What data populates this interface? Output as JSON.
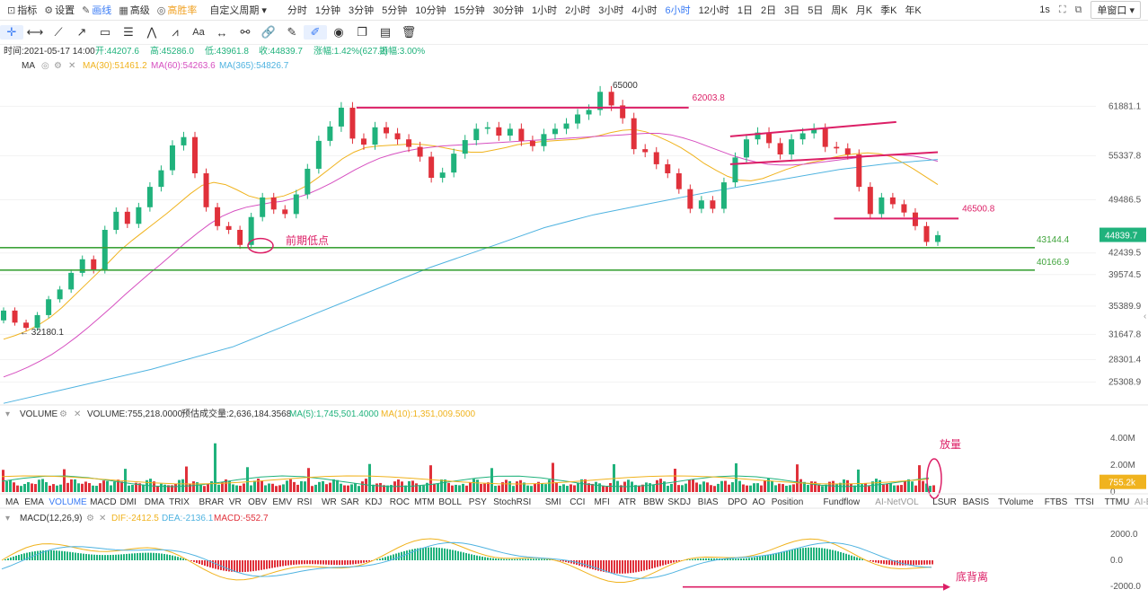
{
  "toolbar": {
    "items": [
      {
        "label": "指标",
        "icon": "indicator-icon"
      },
      {
        "label": "设置",
        "icon": "gear-icon"
      },
      {
        "label": "画线",
        "icon": "pen-icon"
      },
      {
        "label": "高级",
        "icon": "grid-icon"
      },
      {
        "label": "高胜率",
        "icon": "target-icon"
      }
    ],
    "custom_period": "自定义周期 ▾",
    "periods": [
      "分时",
      "1分钟",
      "3分钟",
      "5分钟",
      "10分钟",
      "15分钟",
      "30分钟",
      "1小时",
      "2小时",
      "3小时",
      "4小时",
      "6小时",
      "12小时",
      "1日",
      "2日",
      "3日",
      "5日",
      "周K",
      "月K",
      "季K",
      "年K"
    ],
    "active_period": "6小时",
    "right_interval": "1s",
    "window_label": "单窗口 ▾"
  },
  "colors": {
    "up": "#20b27c",
    "down": "#e0313b",
    "ma30": "#f0b31e",
    "ma60": "#d64fc0",
    "ma365": "#4fb3e0",
    "trend": "#dc1f66",
    "support": "#3ea33a",
    "dif": "#f0b31e",
    "dea": "#4fb3e0"
  },
  "info": {
    "time": "时间:2021-05-17 14:00",
    "open": "开:44207.6",
    "high": "高:45286.0",
    "low": "低:43961.8",
    "close": "收:44839.7",
    "change": "涨幅:1.42%(627.2)",
    "amplitude": "振幅:3.00%",
    "ma_label": "MA",
    "ma30": "MA(30):51461.2",
    "ma60": "MA(60):54263.6",
    "ma365": "MA(365):54826.7",
    "vol_label": "VOLUME",
    "volume": "VOLUME:755,218.0000",
    "est": "预估成交量:2,636,184.3568",
    "vma5": "MA(5):1,745,501.4000",
    "vma10": "MA(10):1,351,009.5000",
    "macd_label": "MACD(12,26,9)",
    "dif": "DIF:-2412.5",
    "dea": "DEA:-2136.1",
    "macd": "MACD:-552.7"
  },
  "indicator_tabs": [
    "MA",
    "EMA",
    "VOLUME",
    "MACD",
    "DMI",
    "DMA",
    "TRIX",
    "BRAR",
    "VR",
    "OBV",
    "EMV",
    "RSI",
    "WR",
    "SAR",
    "KDJ",
    "ROC",
    "MTM",
    "BOLL",
    "PSY",
    "StochRSI",
    "SMI",
    "CCI",
    "MFI",
    "ATR",
    "BBW",
    "SKDJ",
    "BIAS",
    "DPO",
    "AO",
    "Position",
    "Fundflow",
    "AI-NetVOL",
    "LSUR",
    "BASIS",
    "TVolume",
    "FTBS",
    "TTSI",
    "TTMU",
    "AI-BSI"
  ],
  "active_tab": "VOLUME",
  "chart_data": [
    {
      "type": "candlestick",
      "title": "",
      "y_ticks": [
        61881.1,
        55337.8,
        49486.5,
        42439.5,
        39574.5,
        35389.9,
        31647.8,
        28301.4,
        25308.9
      ],
      "ylim": [
        23000,
        65500
      ],
      "current_price_label": "44839.7",
      "candles_sampled": [
        {
          "o": 33500,
          "c": 34800
        },
        {
          "o": 34800,
          "c": 33200
        },
        {
          "o": 33200,
          "c": 32500
        },
        {
          "o": 32500,
          "c": 34200
        },
        {
          "o": 34200,
          "c": 36300
        },
        {
          "o": 36300,
          "c": 37600
        },
        {
          "o": 37600,
          "c": 39800
        },
        {
          "o": 39800,
          "c": 41600
        },
        {
          "o": 41600,
          "c": 40200
        },
        {
          "o": 40200,
          "c": 45500
        },
        {
          "o": 45500,
          "c": 47900
        },
        {
          "o": 47900,
          "c": 46300
        },
        {
          "o": 46300,
          "c": 48500
        },
        {
          "o": 48500,
          "c": 51200
        },
        {
          "o": 51200,
          "c": 53400
        },
        {
          "o": 53400,
          "c": 56700
        },
        {
          "o": 56700,
          "c": 57800
        },
        {
          "o": 57800,
          "c": 53000
        },
        {
          "o": 53000,
          "c": 48500
        },
        {
          "o": 48500,
          "c": 46000
        },
        {
          "o": 46000,
          "c": 45500
        },
        {
          "o": 45500,
          "c": 43500
        },
        {
          "o": 43500,
          "c": 47200
        },
        {
          "o": 47200,
          "c": 49800
        },
        {
          "o": 49800,
          "c": 48200
        },
        {
          "o": 48200,
          "c": 47600
        },
        {
          "o": 47600,
          "c": 50200
        },
        {
          "o": 50200,
          "c": 53600
        },
        {
          "o": 53600,
          "c": 57300
        },
        {
          "o": 57300,
          "c": 59200
        },
        {
          "o": 59200,
          "c": 61700
        },
        {
          "o": 61700,
          "c": 57600
        },
        {
          "o": 57600,
          "c": 56800
        },
        {
          "o": 56800,
          "c": 59100
        },
        {
          "o": 59100,
          "c": 58300
        },
        {
          "o": 58300,
          "c": 57500
        },
        {
          "o": 57500,
          "c": 56500
        },
        {
          "o": 56500,
          "c": 55200
        },
        {
          "o": 55200,
          "c": 52400
        },
        {
          "o": 52400,
          "c": 53100
        },
        {
          "o": 53100,
          "c": 55600
        },
        {
          "o": 55600,
          "c": 57400
        },
        {
          "o": 57400,
          "c": 58900
        },
        {
          "o": 58900,
          "c": 59100
        },
        {
          "o": 59100,
          "c": 58000
        },
        {
          "o": 58000,
          "c": 58900
        },
        {
          "o": 58900,
          "c": 57300
        },
        {
          "o": 57300,
          "c": 56600
        },
        {
          "o": 56600,
          "c": 58200
        },
        {
          "o": 58200,
          "c": 58900
        },
        {
          "o": 58900,
          "c": 59600
        },
        {
          "o": 59600,
          "c": 60800
        },
        {
          "o": 60800,
          "c": 61400
        },
        {
          "o": 61400,
          "c": 63800
        },
        {
          "o": 63800,
          "c": 62000
        },
        {
          "o": 62000,
          "c": 60300
        },
        {
          "o": 60300,
          "c": 56200
        },
        {
          "o": 56200,
          "c": 55800
        },
        {
          "o": 55800,
          "c": 54200
        },
        {
          "o": 54200,
          "c": 53000
        },
        {
          "o": 53000,
          "c": 50900
        },
        {
          "o": 50900,
          "c": 48300
        },
        {
          "o": 48300,
          "c": 49400
        },
        {
          "o": 49400,
          "c": 48300
        },
        {
          "o": 48300,
          "c": 51800
        },
        {
          "o": 51800,
          "c": 55100
        },
        {
          "o": 55100,
          "c": 57500
        },
        {
          "o": 57500,
          "c": 58400
        },
        {
          "o": 58400,
          "c": 57000
        },
        {
          "o": 57000,
          "c": 55500
        },
        {
          "o": 55500,
          "c": 57500
        },
        {
          "o": 57500,
          "c": 58300
        },
        {
          "o": 58300,
          "c": 58900
        },
        {
          "o": 58900,
          "c": 56500
        },
        {
          "o": 56500,
          "c": 56300
        },
        {
          "o": 56300,
          "c": 55500
        },
        {
          "o": 55500,
          "c": 51200
        },
        {
          "o": 51200,
          "c": 47600
        },
        {
          "o": 47600,
          "c": 49800
        },
        {
          "o": 49800,
          "c": 48900
        },
        {
          "o": 48900,
          "c": 47800
        },
        {
          "o": 47800,
          "c": 46000
        },
        {
          "o": 46000,
          "c": 43900
        },
        {
          "o": 43900,
          "c": 44800
        }
      ],
      "ma30": [
        31000,
        31500,
        32100,
        32900,
        33900,
        35200,
        36700,
        38200,
        39700,
        41200,
        42800,
        44100,
        45300,
        46500,
        47700,
        49000,
        50300,
        51400,
        51800,
        51500,
        50800,
        50000,
        49600,
        49700,
        50000,
        50600,
        51400,
        52500,
        53700,
        54900,
        55800,
        56400,
        56600,
        56700,
        56800,
        56900,
        56800,
        56600,
        56300,
        56000,
        55800,
        55800,
        56100,
        56400,
        56800,
        57000,
        57200,
        57300,
        57400,
        57500,
        57700,
        58000,
        58400,
        58700,
        58800,
        58500,
        57900,
        57200,
        56400,
        55400,
        54300,
        53400,
        52600,
        52100,
        52000,
        52300,
        52900,
        53500,
        54000,
        54400,
        54700,
        55100,
        55400,
        55600,
        55700,
        55600,
        55200,
        54400,
        53500,
        52500,
        51500
      ],
      "ma60": [
        26000,
        26600,
        27300,
        28100,
        29000,
        30100,
        31300,
        32600,
        34000,
        35400,
        36900,
        38300,
        39700,
        41000,
        42400,
        43800,
        45100,
        46300,
        47300,
        48000,
        48500,
        48800,
        49100,
        49300,
        49700,
        50200,
        50900,
        51700,
        52600,
        53500,
        54300,
        55000,
        55500,
        55900,
        56200,
        56400,
        56600,
        56700,
        56800,
        56900,
        57000,
        57100,
        57200,
        57300,
        57400,
        57500,
        57600,
        57700,
        57800,
        57900,
        58000,
        58100,
        58200,
        58300,
        58300,
        58100,
        57700,
        57200,
        56600,
        56000,
        55400,
        54900,
        54500,
        54200,
        54100,
        54100,
        54200,
        54400,
        54600,
        54800,
        55000,
        55200,
        55300,
        55400,
        55400,
        55300,
        55000,
        54600
      ],
      "ma365": [
        {
          "i": 0,
          "v": 22500
        },
        {
          "i": 8,
          "v": 24500
        },
        {
          "i": 18,
          "v": 27000
        },
        {
          "i": 28,
          "v": 30000
        },
        {
          "i": 36,
          "v": 33500
        },
        {
          "i": 44,
          "v": 37000
        },
        {
          "i": 52,
          "v": 40500
        },
        {
          "i": 60,
          "v": 43500
        },
        {
          "i": 66,
          "v": 45800
        },
        {
          "i": 72,
          "v": 47500
        },
        {
          "i": 78,
          "v": 48800
        },
        {
          "i": 86,
          "v": 50500
        },
        {
          "i": 94,
          "v": 52000
        },
        {
          "i": 102,
          "v": 53500
        },
        {
          "i": 108,
          "v": 54300
        },
        {
          "i": 114,
          "v": 54830
        }
      ],
      "trend_lines": [
        {
          "a": [
            17,
            61700
          ],
          "b": [
            33,
            61700
          ],
          "label": "62003.8"
        },
        {
          "a": [
            35,
            57900
          ],
          "b": [
            43,
            59800
          ]
        },
        {
          "a": [
            35,
            54200
          ],
          "b": [
            45,
            55800
          ]
        },
        {
          "a": [
            40,
            47000
          ],
          "b": [
            46,
            47000
          ],
          "label": "46500.8"
        }
      ],
      "support_lines": [
        {
          "v": 43144.4,
          "label": "43144.4"
        },
        {
          "v": 40166.9,
          "label": "40166.9"
        }
      ],
      "annotations": [
        "65000",
        "← 32180.1",
        "前期低点"
      ]
    },
    {
      "type": "bar",
      "title": "VOLUME",
      "y_ticks": [
        "4.00M",
        "2.00M",
        "0"
      ],
      "current_label": "755.2k",
      "annotation": "放量"
    },
    {
      "type": "bar",
      "title": "MACD(12,26,9)",
      "y_ticks": [
        "2000.0",
        "0.0",
        "-2000.0"
      ],
      "annotation": "底背离"
    }
  ]
}
